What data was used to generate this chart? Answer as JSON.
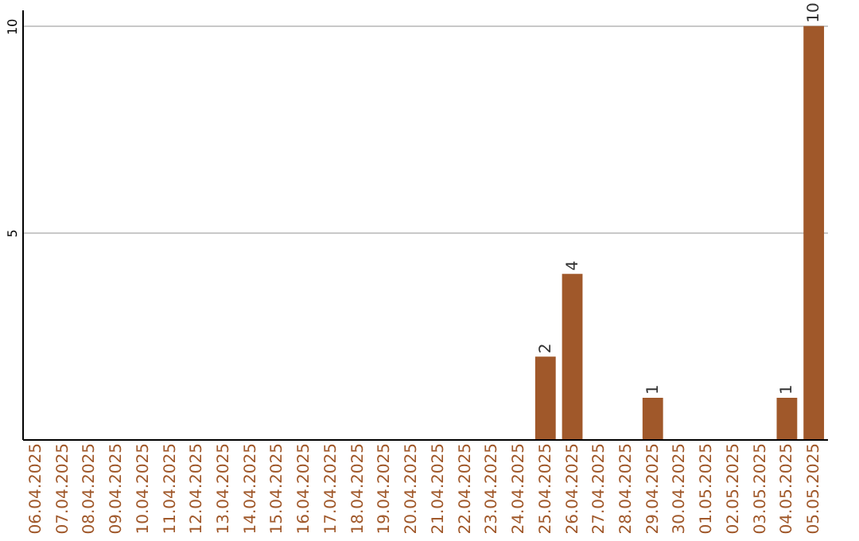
{
  "chart_data": {
    "type": "bar",
    "categories": [
      "06.04.2025",
      "07.04.2025",
      "08.04.2025",
      "09.04.2025",
      "10.04.2025",
      "11.04.2025",
      "12.04.2025",
      "13.04.2025",
      "14.04.2025",
      "15.04.2025",
      "16.04.2025",
      "17.04.2025",
      "18.04.2025",
      "19.04.2025",
      "20.04.2025",
      "21.04.2025",
      "22.04.2025",
      "23.04.2025",
      "24.04.2025",
      "25.04.2025",
      "26.04.2025",
      "27.04.2025",
      "28.04.2025",
      "29.04.2025",
      "30.04.2025",
      "01.05.2025",
      "02.05.2025",
      "03.05.2025",
      "04.05.2025",
      "05.05.2025"
    ],
    "values": [
      0,
      0,
      0,
      0,
      0,
      0,
      0,
      0,
      0,
      0,
      0,
      0,
      0,
      0,
      0,
      0,
      0,
      0,
      0,
      2,
      4,
      0,
      0,
      1,
      0,
      0,
      0,
      0,
      1,
      10
    ],
    "value_labels": [
      null,
      null,
      null,
      null,
      null,
      null,
      null,
      null,
      null,
      null,
      null,
      null,
      null,
      null,
      null,
      null,
      null,
      null,
      null,
      "2",
      "4",
      null,
      null,
      "1",
      null,
      null,
      null,
      null,
      "1",
      "10"
    ],
    "color": "#a0582a",
    "ylim": [
      0,
      10.4
    ],
    "yticks": [
      5,
      10
    ],
    "grid": "y"
  }
}
